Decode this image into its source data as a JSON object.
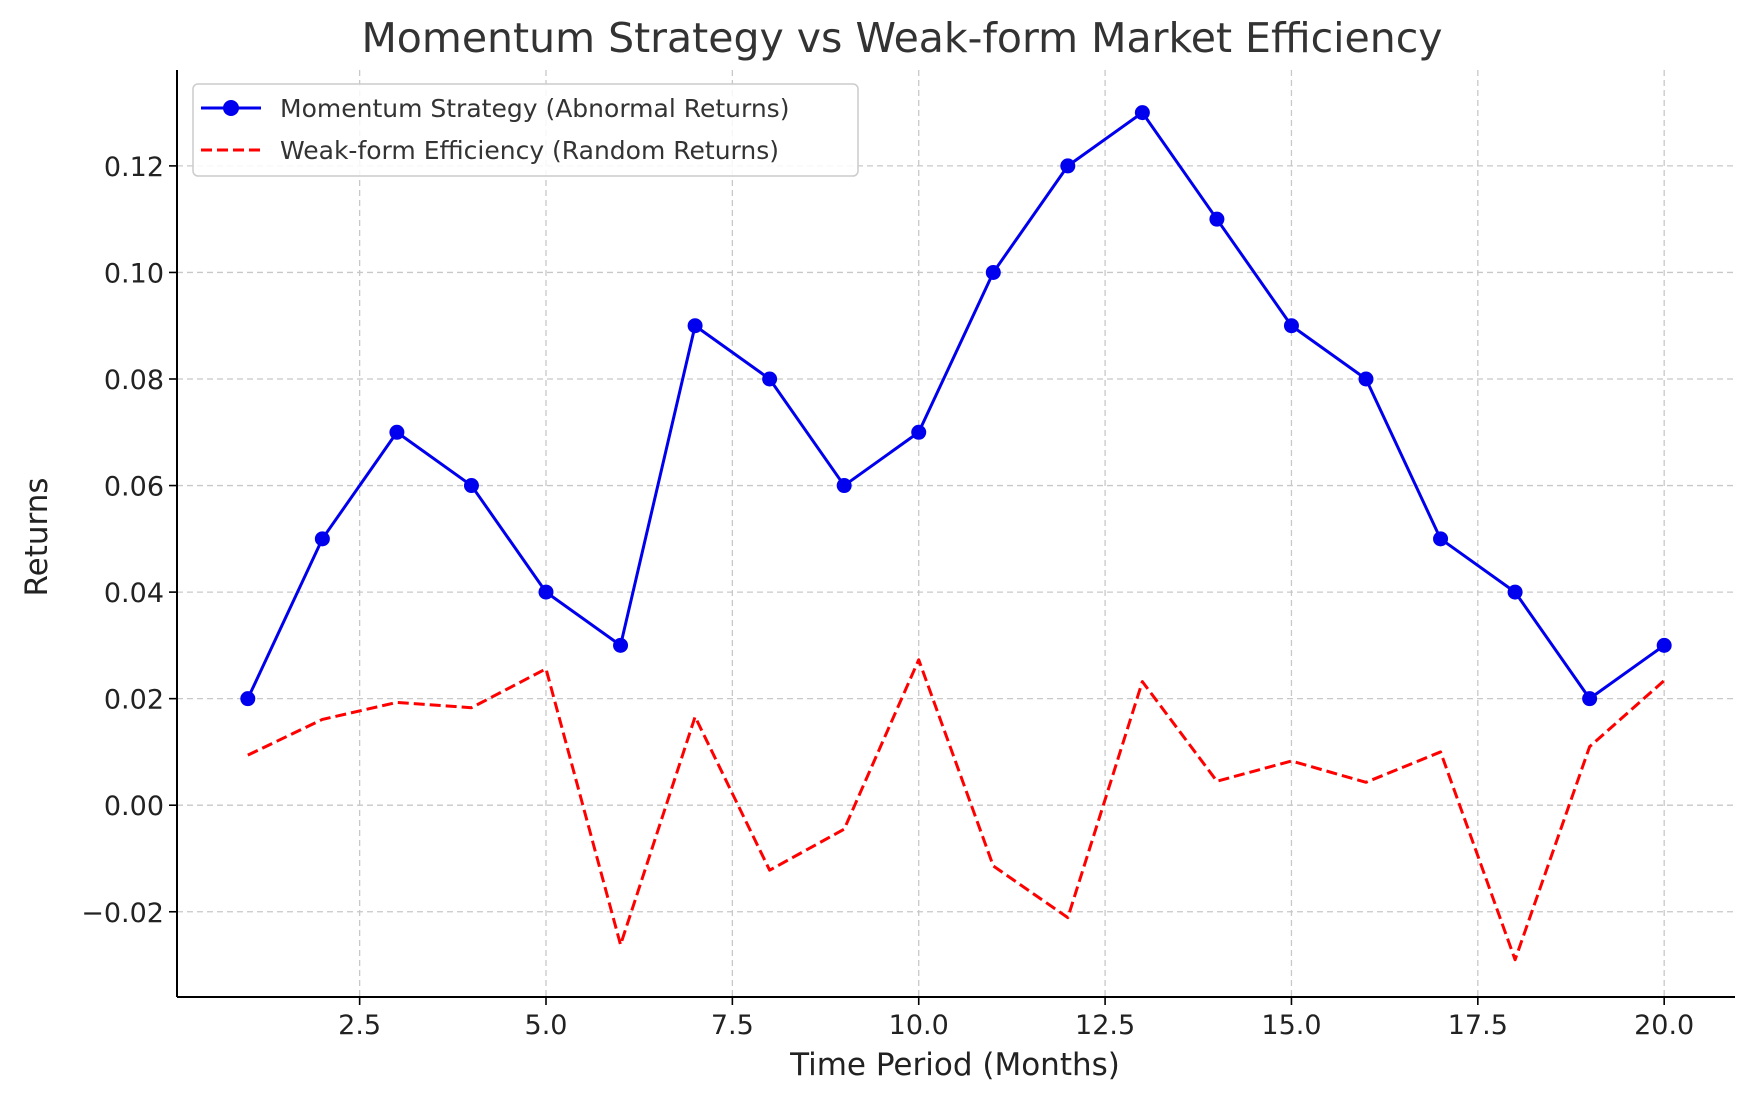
{
  "chart_data": {
    "type": "line",
    "title": "Momentum Strategy vs Weak-form Market Efficiency",
    "xlabel": "Time Period (Months)",
    "ylabel": "Returns",
    "xlim": [
      0.05,
      20.95
    ],
    "ylim": [
      -0.036,
      0.138
    ],
    "x_ticks": [
      2.5,
      5.0,
      7.5,
      10.0,
      12.5,
      15.0,
      17.5,
      20.0
    ],
    "x_tick_labels": [
      "2.5",
      "5.0",
      "7.5",
      "10.0",
      "12.5",
      "15.0",
      "17.5",
      "20.0"
    ],
    "y_ticks": [
      -0.02,
      0.0,
      0.02,
      0.04,
      0.06,
      0.08,
      0.1,
      0.12
    ],
    "y_tick_labels": [
      "−0.02",
      "0.00",
      "0.02",
      "0.04",
      "0.06",
      "0.08",
      "0.10",
      "0.12"
    ],
    "grid": true,
    "legend_position": "top-left",
    "x": [
      1,
      2,
      3,
      4,
      5,
      6,
      7,
      8,
      9,
      10,
      11,
      12,
      13,
      14,
      15,
      16,
      17,
      18,
      19,
      20
    ],
    "series": [
      {
        "name": "Momentum Strategy (Abnormal Returns)",
        "color": "#0000ee",
        "style": "solid",
        "marker": "circle",
        "values": [
          0.02,
          0.05,
          0.07,
          0.06,
          0.04,
          0.03,
          0.09,
          0.08,
          0.06,
          0.07,
          0.1,
          0.12,
          0.13,
          0.11,
          0.09,
          0.08,
          0.05,
          0.04,
          0.02,
          0.03
        ]
      },
      {
        "name": "Weak-form Efficiency (Random Returns)",
        "color": "#ff0000",
        "style": "dashed",
        "marker": "none",
        "values": [
          0.0094,
          0.0161,
          0.0193,
          0.0183,
          0.0256,
          -0.0262,
          0.0166,
          -0.0122,
          -0.0045,
          0.0273,
          -0.0114,
          -0.0211,
          0.0232,
          0.0045,
          0.0083,
          0.0043,
          0.01,
          -0.029,
          0.011,
          0.0234
        ]
      }
    ]
  }
}
